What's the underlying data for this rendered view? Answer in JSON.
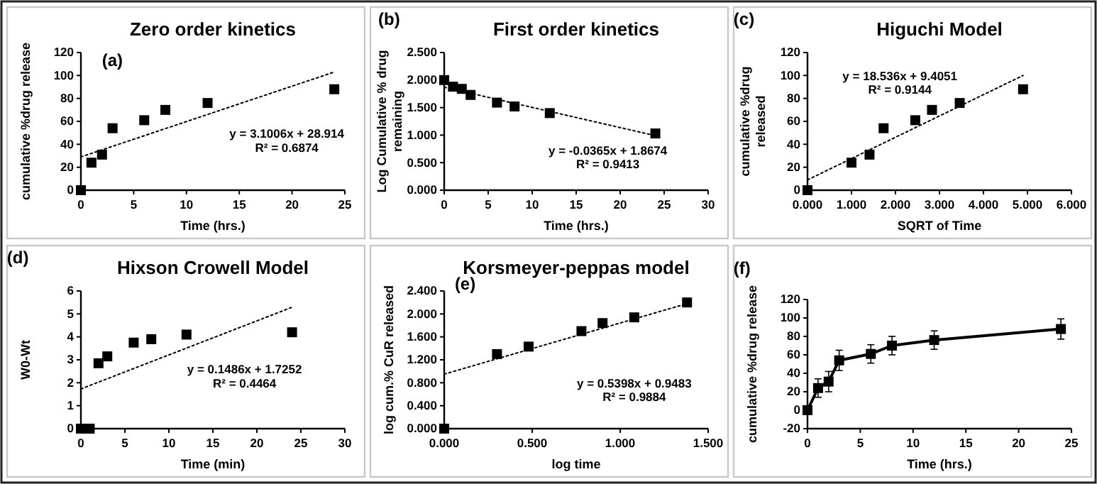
{
  "chart_data": [
    {
      "type": "scatter",
      "title": "Zero order kinetics",
      "xlabel": "Time (hrs.)",
      "ylabel": "cumulative %drug release",
      "annotations": [
        "(a)",
        "y = 3.1006x + 28.914",
        "R² = 0.6874"
      ],
      "xlim": [
        0,
        25
      ],
      "xticks": [
        0,
        5,
        10,
        15,
        20,
        25
      ],
      "ylim": [
        0,
        120
      ],
      "yticks": [
        0,
        20,
        40,
        60,
        80,
        100,
        120
      ],
      "marker": "square",
      "series": [
        {
          "color": "#000000",
          "x": [
            0,
            1,
            2,
            3,
            6,
            8,
            12,
            24
          ],
          "values": [
            0,
            24,
            31,
            54,
            61,
            70,
            76,
            88
          ]
        },
        {
          "type": "line",
          "color": "#000000",
          "line_style": "dotted",
          "marker": "none",
          "x": [
            0,
            24
          ],
          "values": [
            29,
            103
          ]
        }
      ]
    },
    {
      "type": "scatter",
      "title": "First order kinetics",
      "xlabel": "Time (hrs.)",
      "ylabel": "Log Cumulative % drug remaining",
      "annotations": [
        "(b)",
        "y = -0.0365x + 1.8674",
        "R² = 0.9413"
      ],
      "xlim": [
        0,
        30
      ],
      "xticks": [
        0,
        5,
        10,
        15,
        20,
        25,
        30
      ],
      "ylim": [
        0,
        2.5
      ],
      "yticks": [
        {
          "value": 0,
          "label": "0.000"
        },
        {
          "value": 0.5,
          "label": "0.500"
        },
        {
          "value": 1,
          "label": "1.000"
        },
        {
          "value": 1.5,
          "label": "1.500"
        },
        {
          "value": 2,
          "label": "2.000"
        },
        {
          "value": 2.5,
          "label": "2.500"
        }
      ],
      "marker": "square",
      "series": [
        {
          "color": "#000000",
          "x": [
            0,
            1,
            2,
            3,
            6,
            8,
            12,
            24
          ],
          "values": [
            2.0,
            1.88,
            1.84,
            1.73,
            1.59,
            1.52,
            1.4,
            1.03
          ]
        },
        {
          "type": "line",
          "color": "#000000",
          "line_style": "dotted",
          "marker": "none",
          "x": [
            0,
            24
          ],
          "values": [
            1.87,
            0.99
          ]
        }
      ]
    },
    {
      "type": "scatter",
      "title": "Higuchi Model",
      "xlabel": "SQRT of Time",
      "ylabel": "cumulative %drug released",
      "annotations": [
        "(c)",
        "y = 18.536x + 9.4051",
        "R² = 0.9144"
      ],
      "xlim": [
        0,
        6
      ],
      "xticks": [
        {
          "value": 0,
          "label": "0.000"
        },
        {
          "value": 1,
          "label": "1.000"
        },
        {
          "value": 2,
          "label": "2.000"
        },
        {
          "value": 3,
          "label": "3.000"
        },
        {
          "value": 4,
          "label": "4.000"
        },
        {
          "value": 5,
          "label": "5.000"
        },
        {
          "value": 6,
          "label": "6.000"
        }
      ],
      "ylim": [
        0,
        120
      ],
      "yticks": [
        0,
        20,
        40,
        60,
        80,
        100,
        120
      ],
      "marker": "square",
      "series": [
        {
          "color": "#000000",
          "x": [
            0,
            1,
            1.41,
            1.73,
            2.45,
            2.83,
            3.46,
            4.9
          ],
          "values": [
            0,
            24,
            31,
            54,
            61,
            70,
            76,
            88
          ]
        },
        {
          "type": "line",
          "color": "#000000",
          "line_style": "dotted",
          "marker": "none",
          "x": [
            0,
            4.9
          ],
          "values": [
            9,
            100
          ]
        }
      ]
    },
    {
      "type": "scatter",
      "title": "Hixson Crowell Model",
      "xlabel": "Time (min)",
      "ylabel": "W0-Wt",
      "annotations": [
        "(d)",
        "y = 0.1486x + 1.7252",
        "R² = 0.4464"
      ],
      "xlim": [
        0,
        30
      ],
      "xticks": [
        0,
        5,
        10,
        15,
        20,
        25,
        30
      ],
      "ylim": [
        0,
        6
      ],
      "yticks": [
        0,
        1,
        2,
        3,
        4,
        5,
        6
      ],
      "marker": "square",
      "series": [
        {
          "color": "#000000",
          "x": [
            0,
            1,
            2,
            3,
            6,
            8,
            12,
            24
          ],
          "values": [
            0,
            0,
            2.85,
            3.15,
            3.75,
            3.9,
            4.1,
            4.2
          ]
        },
        {
          "type": "line",
          "color": "#000000",
          "line_style": "dotted",
          "marker": "none",
          "x": [
            0,
            24
          ],
          "values": [
            1.73,
            5.29
          ]
        }
      ]
    },
    {
      "type": "scatter",
      "title": "Korsmeyer-peppas model",
      "xlabel": "log time",
      "ylabel": "log cum.% CuR released",
      "annotations": [
        "(e)",
        "y = 0.5398x + 0.9483",
        "R² = 0.9884"
      ],
      "xlim": [
        0,
        1.5
      ],
      "xticks": [
        {
          "value": 0,
          "label": "0.000"
        },
        {
          "value": 0.5,
          "label": "0.500"
        },
        {
          "value": 1,
          "label": "1.000"
        },
        {
          "value": 1.5,
          "label": "1.500"
        }
      ],
      "ylim": [
        0,
        2.4
      ],
      "yticks": [
        {
          "value": 0,
          "label": "0.000"
        },
        {
          "value": 0.4,
          "label": "0.400"
        },
        {
          "value": 0.8,
          "label": "0.800"
        },
        {
          "value": 1.2,
          "label": "1.200"
        },
        {
          "value": 1.6,
          "label": "1.600"
        },
        {
          "value": 2,
          "label": "2.000"
        },
        {
          "value": 2.4,
          "label": "2.400"
        }
      ],
      "marker": "square",
      "series": [
        {
          "color": "#000000",
          "x": [
            0,
            0.3,
            0.48,
            0.78,
            0.9,
            1.08,
            1.38
          ],
          "values": [
            0,
            1.3,
            1.43,
            1.7,
            1.84,
            1.94,
            2.2
          ]
        },
        {
          "type": "line",
          "color": "#000000",
          "line_style": "dotted",
          "marker": "none",
          "x": [
            0,
            1.38
          ],
          "values": [
            0.95,
            2.18
          ]
        }
      ]
    },
    {
      "type": "line",
      "xlabel": "Time (hrs.)",
      "ylabel": "cumulative %drug release",
      "annotations": [
        "(f)"
      ],
      "xlim": [
        0,
        25
      ],
      "xticks": [
        0,
        5,
        10,
        15,
        20,
        25
      ],
      "ylim": [
        -20,
        120
      ],
      "yticks": [
        -20,
        0,
        20,
        40,
        60,
        80,
        100,
        120
      ],
      "marker": "square",
      "line_style": "solid",
      "series": [
        {
          "color": "#000000",
          "x": [
            0,
            1,
            2,
            3,
            6,
            8,
            12,
            24
          ],
          "values": [
            0,
            24,
            31,
            54,
            61,
            70,
            76,
            88
          ],
          "errors": [
            3,
            10,
            11,
            11,
            10,
            10,
            10,
            11
          ]
        }
      ]
    }
  ]
}
